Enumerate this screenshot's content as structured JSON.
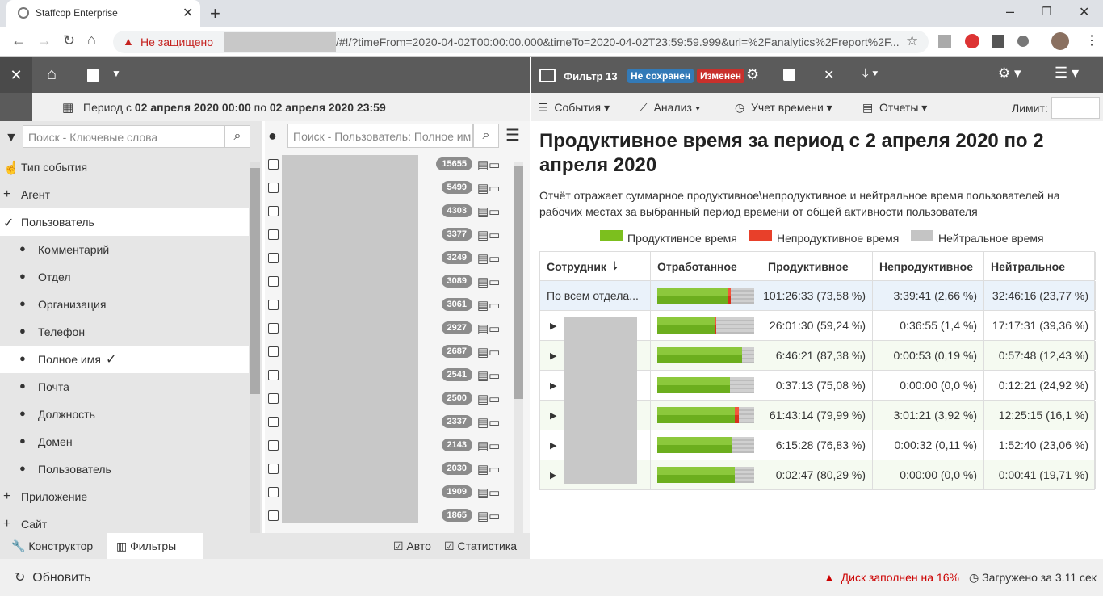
{
  "browser": {
    "tab_title": "Staffcop Enterprise",
    "not_secure": "Не защищено",
    "url": "/#!/?timeFrom=2020-04-02T00:00:00.000&timeTo=2020-04-02T23:59:59.999&url=%2Fanalytics%2Freport%2F..."
  },
  "period": {
    "label": "Период с",
    "from": "02 апреля 2020 00:00",
    "to_word": "по",
    "to": "02 апреля 2020 23:59"
  },
  "filters": {
    "search_placeholder": "Поиск - Ключевые слова",
    "items": [
      "Тип события",
      "Агент",
      "Пользователь",
      "Комментарий",
      "Отдел",
      "Организация",
      "Телефон",
      "Полное имя",
      "Почта",
      "Должность",
      "Домен",
      "Пользователь",
      "Приложение",
      "Сайт"
    ]
  },
  "users": {
    "search_placeholder": "Поиск - Пользователь: Полное им",
    "counts": [
      "15655",
      "5499",
      "4303",
      "3377",
      "3249",
      "3089",
      "3061",
      "2927",
      "2687",
      "2541",
      "2500",
      "2337",
      "2143",
      "2030",
      "1909",
      "1865"
    ]
  },
  "bottom_tabs": {
    "constructor": "Конструктор",
    "filters": "Фильтры",
    "auto": "Авто",
    "stats": "Статистика"
  },
  "status": {
    "refresh": "Обновить",
    "disk": "Диск заполнен на 16%",
    "loaded": "Загружено за 3.11 сек"
  },
  "report_header": {
    "filter_name": "Фильтр 13",
    "unsaved": "Не сохранен",
    "changed": "Изменен"
  },
  "menu": {
    "events": "События",
    "analysis": "Анализ",
    "time": "Учет времени",
    "reports": "Отчеты",
    "limit": "Лимит:"
  },
  "report": {
    "title": "Продуктивное время за период с 2 апреля 2020 по 2 апреля 2020",
    "description": "Отчёт отражает суммарное продуктивное\\непродуктивное и нейтральное время пользователей на рабочих местах за выбранный период времени от общей активности пользователя",
    "legend": [
      "Продуктивное время",
      "Непродуктивное время",
      "Нейтральное время"
    ],
    "columns": [
      "Сотрудник",
      "Отработанное",
      "Продуктивное",
      "Непродуктивное",
      "Нейтральное"
    ],
    "rows": [
      {
        "name": "По всем отдела...",
        "productive": "101:26:33 (73,58 %)",
        "unproductive": "3:39:41 (2,66 %)",
        "neutral": "32:46:16 (23,77 %)"
      },
      {
        "productive": "26:01:30 (59,24 %)",
        "unproductive": "0:36:55 (1,4 %)",
        "neutral": "17:17:31 (39,36 %)"
      },
      {
        "productive": "6:46:21 (87,38 %)",
        "unproductive": "0:00:53 (0,19 %)",
        "neutral": "0:57:48 (12,43 %)"
      },
      {
        "productive": "0:37:13 (75,08 %)",
        "unproductive": "0:00:00 (0,0 %)",
        "neutral": "0:12:21 (24,92 %)"
      },
      {
        "productive": "61:43:14 (79,99 %)",
        "unproductive": "3:01:21 (3,92 %)",
        "neutral": "12:25:15 (16,1 %)"
      },
      {
        "productive": "6:15:28 (76,83 %)",
        "unproductive": "0:00:32 (0,11 %)",
        "neutral": "1:52:40 (23,06 %)"
      },
      {
        "productive": "0:02:47 (80,29 %)",
        "unproductive": "0:00:00 (0,0 %)",
        "neutral": "0:00:41 (19,71 %)"
      }
    ]
  }
}
